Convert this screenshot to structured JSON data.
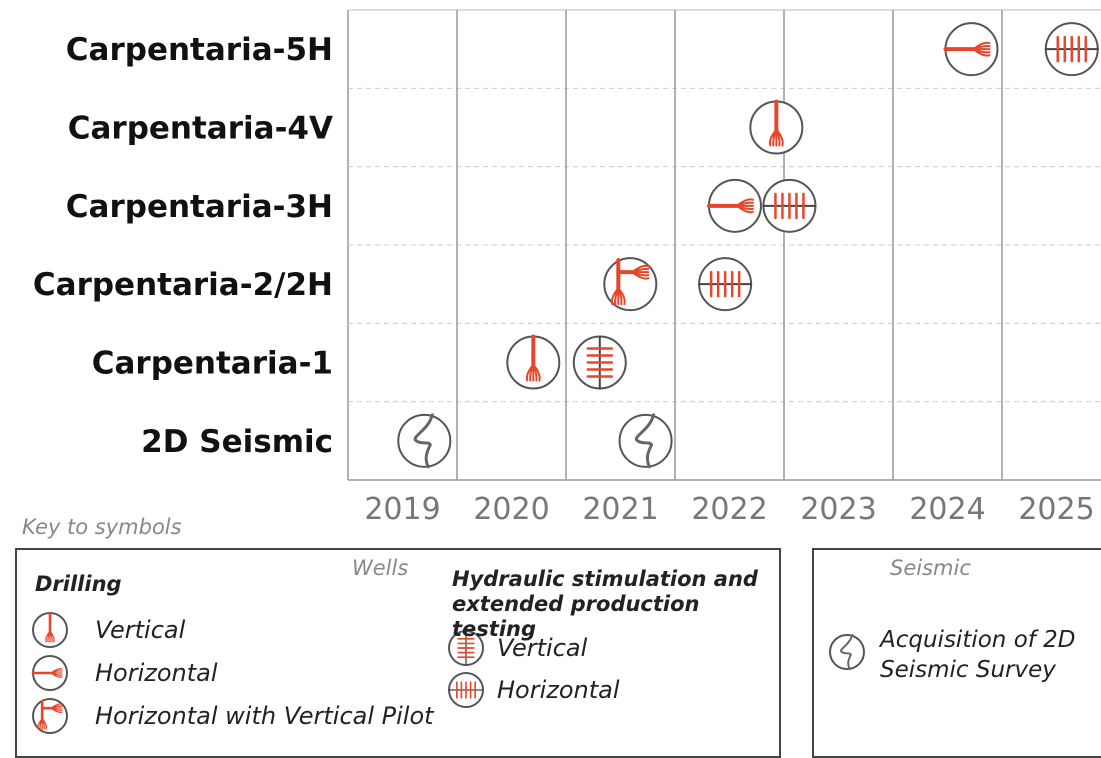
{
  "chart_data": {
    "type": "timeline",
    "categories": [
      "Carpentaria-5H",
      "Carpentaria-4V",
      "Carpentaria-3H",
      "Carpentaria-2/2H",
      "Carpentaria-1",
      "2D Seismic"
    ],
    "xlim": [
      2019,
      2026
    ],
    "xticks": [
      2019,
      2020,
      2021,
      2022,
      2023,
      2024,
      2025
    ],
    "grid": true,
    "legend_title": "Key to symbols",
    "panels": [
      {
        "title": "Wells",
        "groups": [
          {
            "title": "Drilling",
            "series": [
              {
                "name": "Vertical",
                "marker": "drill-vertical",
                "color": "#e8462a",
                "rows": [
                  "Carpentaria-4V",
                  "Carpentaria-1"
                ],
                "x": [
                  2022.93,
                  2020.7
                ]
              },
              {
                "name": "Horizontal",
                "marker": "drill-horizontal",
                "color": "#e8462a",
                "rows": [
                  "Carpentaria-5H",
                  "Carpentaria-3H"
                ],
                "x": [
                  2024.72,
                  2022.55
                ]
              },
              {
                "name": "Horizontal with Vertical Pilot",
                "marker": "drill-pilot",
                "color": "#e8462a",
                "rows": [
                  "Carpentaria-2/2H"
                ],
                "x": [
                  2021.59
                ]
              }
            ]
          },
          {
            "title": "Hydraulic stimulation and extended production testing",
            "series": [
              {
                "name": "Vertical",
                "marker": "frac-vertical",
                "color": "#e8462a",
                "rows": [
                  "Carpentaria-1"
                ],
                "x": [
                  2021.31
                ]
              },
              {
                "name": "Horizontal",
                "marker": "frac-horizontal",
                "color": "#e8462a",
                "rows": [
                  "Carpentaria-5H",
                  "Carpentaria-3H",
                  "Carpentaria-2/2H"
                ],
                "x": [
                  2025.64,
                  2023.05,
                  2022.46
                ]
              }
            ]
          }
        ]
      },
      {
        "title": "Seismic",
        "groups": [
          {
            "series": [
              {
                "name": "Acquisition of 2D Seismic Survey",
                "marker": "seismic",
                "color": "#666666",
                "rows": [
                  "2D Seismic",
                  "2D Seismic"
                ],
                "x": [
                  2019.7,
                  2021.73
                ]
              }
            ]
          }
        ]
      }
    ]
  }
}
